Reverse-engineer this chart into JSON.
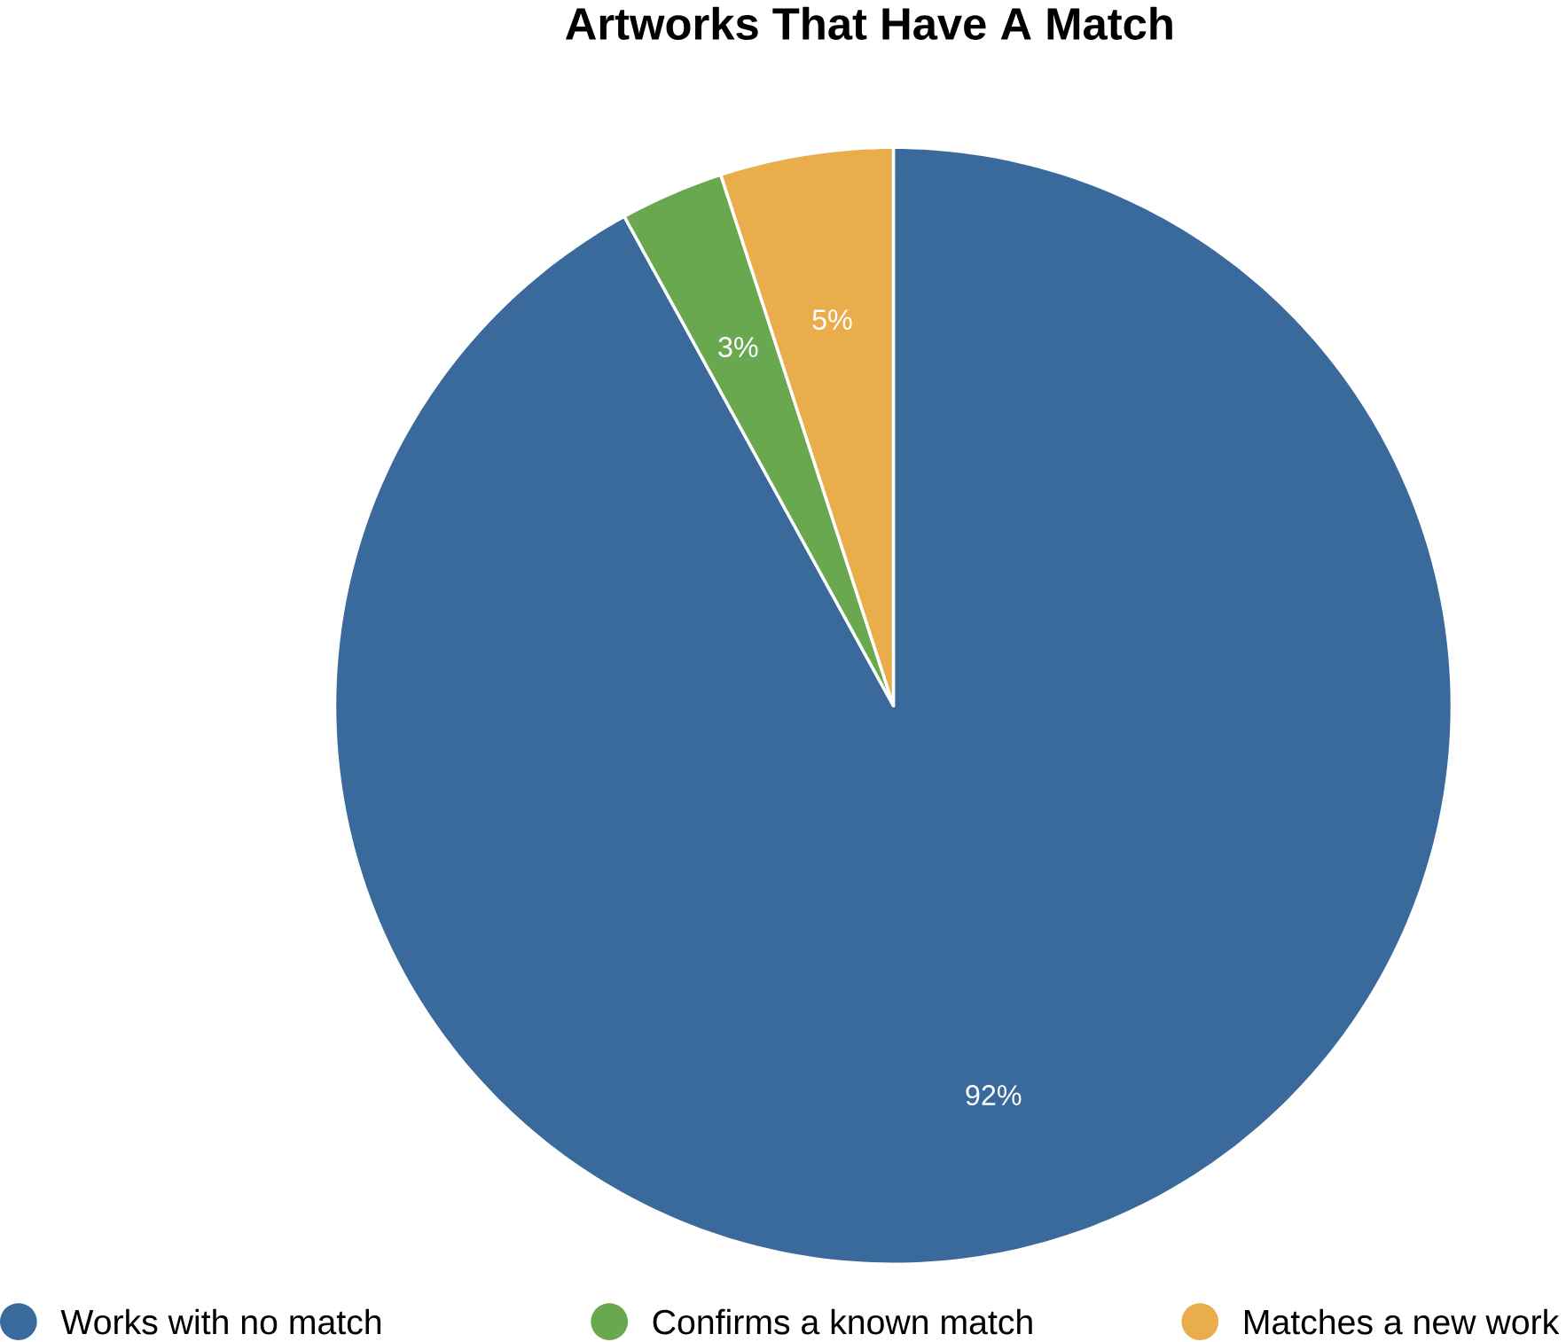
{
  "chart_data": {
    "type": "pie",
    "title": "Artworks That Have A Match",
    "categories": [
      "Works with no match",
      "Confirms a known match",
      "Matches a new work"
    ],
    "values": [
      92,
      3,
      5
    ],
    "colors": [
      "#3a6a9c",
      "#6aa84f",
      "#e9ad4c"
    ],
    "value_labels": [
      "92%",
      "3%",
      "5%"
    ],
    "legend": "bottom"
  }
}
